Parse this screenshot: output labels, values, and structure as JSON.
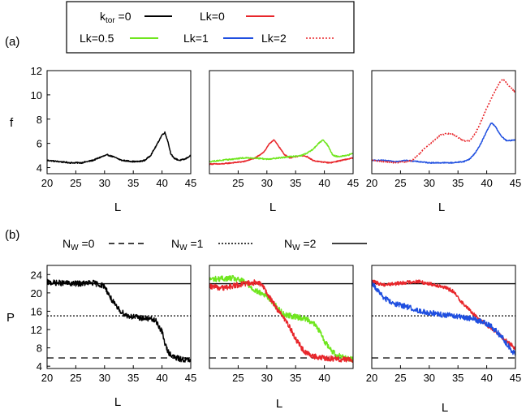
{
  "legend_top": {
    "entries": [
      {
        "label_main": "k",
        "label_sub": "tor",
        "label_rest": " =0",
        "color": "#000000",
        "dash": "solid"
      },
      {
        "label_main": "Lk=0",
        "color": "#e8262b",
        "dash": "solid"
      },
      {
        "label_main": "Lk=0.5",
        "color": "#6fe61e",
        "dash": "solid"
      },
      {
        "label_main": "Lk=1",
        "color": "#1f4fe0",
        "dash": "solid"
      },
      {
        "label_main": "Lk=2",
        "color": "#e8262b",
        "dash": "dotted"
      }
    ]
  },
  "panel_labels": {
    "a": "(a)",
    "b": "(b)"
  },
  "legend_b": {
    "entries": [
      {
        "label_main": "N",
        "label_sub": "W",
        "label_rest": " =0",
        "dash": "dashed"
      },
      {
        "label_main": "N",
        "label_sub": "W",
        "label_rest": " =1",
        "dash": "dotted"
      },
      {
        "label_main": "N",
        "label_sub": "W",
        "label_rest": " =2",
        "dash": "solid"
      }
    ]
  },
  "chart_data": [
    {
      "id": "a1",
      "type": "line",
      "xlabel": "L",
      "ylabel": "f",
      "xlim": [
        20,
        45
      ],
      "ylim": [
        3.5,
        12
      ],
      "xticks": [
        20,
        25,
        30,
        35,
        40,
        45
      ],
      "yticks": [
        4,
        6,
        8,
        10,
        12
      ],
      "series": [
        {
          "name": "ktor=0",
          "color": "#000000",
          "dash": "solid",
          "noise": 0.05,
          "points": [
            [
              20,
              4.6
            ],
            [
              22,
              4.5
            ],
            [
              24,
              4.4
            ],
            [
              26,
              4.4
            ],
            [
              28,
              4.6
            ],
            [
              29.5,
              4.9
            ],
            [
              30.5,
              5.05
            ],
            [
              31.5,
              4.9
            ],
            [
              33,
              4.6
            ],
            [
              35,
              4.5
            ],
            [
              36,
              4.5
            ],
            [
              37,
              4.6
            ],
            [
              38,
              5.0
            ],
            [
              39,
              5.8
            ],
            [
              40,
              6.7
            ],
            [
              40.5,
              6.9
            ],
            [
              41,
              6.2
            ],
            [
              41.5,
              5.2
            ],
            [
              42,
              4.8
            ],
            [
              43,
              4.6
            ],
            [
              44,
              4.7
            ],
            [
              45,
              5.0
            ]
          ]
        }
      ]
    },
    {
      "id": "a2",
      "type": "line",
      "xlabel": "L",
      "ylabel": "",
      "xlim": [
        20,
        45
      ],
      "ylim": [
        3.5,
        12
      ],
      "xticks": [
        25,
        30,
        35,
        40,
        45
      ],
      "yticks": [],
      "series": [
        {
          "name": "Lk=0",
          "color": "#e8262b",
          "dash": "solid",
          "noise": 0.04,
          "points": [
            [
              20,
              4.3
            ],
            [
              22,
              4.3
            ],
            [
              24,
              4.4
            ],
            [
              26,
              4.5
            ],
            [
              28,
              4.8
            ],
            [
              29.5,
              5.3
            ],
            [
              30.5,
              6.0
            ],
            [
              31.2,
              6.3
            ],
            [
              32,
              5.8
            ],
            [
              33,
              5.1
            ],
            [
              34,
              4.8
            ],
            [
              35,
              4.9
            ],
            [
              36,
              5.0
            ],
            [
              37,
              4.9
            ],
            [
              38,
              4.6
            ],
            [
              39,
              4.5
            ],
            [
              41,
              4.4
            ],
            [
              43,
              4.6
            ],
            [
              45,
              4.8
            ]
          ]
        },
        {
          "name": "Lk=0.5",
          "color": "#6fe61e",
          "dash": "solid",
          "noise": 0.05,
          "points": [
            [
              20,
              4.5
            ],
            [
              22,
              4.6
            ],
            [
              24,
              4.7
            ],
            [
              26,
              4.8
            ],
            [
              28,
              4.8
            ],
            [
              30,
              4.7
            ],
            [
              32,
              4.8
            ],
            [
              34,
              4.9
            ],
            [
              36,
              5.0
            ],
            [
              37,
              5.2
            ],
            [
              38,
              5.5
            ],
            [
              39,
              6.0
            ],
            [
              39.8,
              6.3
            ],
            [
              40.5,
              5.9
            ],
            [
              41.5,
              5.0
            ],
            [
              42.5,
              4.9
            ],
            [
              44,
              5.0
            ],
            [
              45,
              5.2
            ]
          ]
        }
      ]
    },
    {
      "id": "a3",
      "type": "line",
      "xlabel": "L",
      "ylabel": "",
      "xlim": [
        20,
        45
      ],
      "ylim": [
        3.5,
        12
      ],
      "xticks": [
        20,
        25,
        30,
        35,
        40,
        45
      ],
      "yticks": [],
      "series": [
        {
          "name": "Lk=1",
          "color": "#1f4fe0",
          "dash": "solid",
          "noise": 0.04,
          "points": [
            [
              20,
              4.6
            ],
            [
              22,
              4.6
            ],
            [
              24,
              4.5
            ],
            [
              26,
              4.6
            ],
            [
              28,
              4.5
            ],
            [
              30,
              4.4
            ],
            [
              32,
              4.4
            ],
            [
              34,
              4.4
            ],
            [
              36,
              4.5
            ],
            [
              37,
              4.7
            ],
            [
              38,
              5.2
            ],
            [
              39,
              6.0
            ],
            [
              40,
              7.0
            ],
            [
              40.8,
              7.7
            ],
            [
              41.5,
              7.4
            ],
            [
              42.5,
              6.6
            ],
            [
              43.5,
              6.2
            ],
            [
              45,
              6.3
            ]
          ]
        },
        {
          "name": "Lk=2",
          "color": "#e8262b",
          "dash": "dotted",
          "noise": 0.04,
          "points": [
            [
              20,
              4.6
            ],
            [
              22,
              4.5
            ],
            [
              24,
              4.4
            ],
            [
              26,
              4.5
            ],
            [
              27,
              4.6
            ],
            [
              28,
              5.0
            ],
            [
              29,
              5.5
            ],
            [
              30,
              5.9
            ],
            [
              31,
              6.3
            ],
            [
              32,
              6.7
            ],
            [
              33,
              6.8
            ],
            [
              34,
              6.8
            ],
            [
              35,
              6.5
            ],
            [
              36,
              6.2
            ],
            [
              37,
              6.2
            ],
            [
              38,
              6.8
            ],
            [
              39,
              7.8
            ],
            [
              40,
              8.9
            ],
            [
              41,
              9.9
            ],
            [
              42,
              10.8
            ],
            [
              42.5,
              11.2
            ],
            [
              43,
              11.2
            ],
            [
              44,
              10.7
            ],
            [
              45,
              10.2
            ]
          ]
        }
      ]
    },
    {
      "id": "b1",
      "type": "line",
      "xlabel": "L",
      "ylabel": "P",
      "xlim": [
        20,
        45
      ],
      "ylim": [
        3.5,
        26
      ],
      "xticks": [
        20,
        25,
        30,
        35,
        40,
        45
      ],
      "yticks": [
        4,
        8,
        12,
        16,
        20,
        24
      ],
      "hlines": [
        {
          "y": 22,
          "dash": "solid"
        },
        {
          "y": 15,
          "dash": "dotted"
        },
        {
          "y": 5.8,
          "dash": "dashed"
        }
      ],
      "series": [
        {
          "name": "ktor=0",
          "color": "#000000",
          "dash": "solid",
          "noise": 0.6,
          "points": [
            [
              20,
              22.3
            ],
            [
              25,
              22.0
            ],
            [
              28,
              22.2
            ],
            [
              30,
              21.5
            ],
            [
              31,
              19.0
            ],
            [
              32,
              17.0
            ],
            [
              33,
              15.8
            ],
            [
              34,
              15.0
            ],
            [
              36,
              14.6
            ],
            [
              38,
              14.3
            ],
            [
              39,
              13.8
            ],
            [
              40,
              11.5
            ],
            [
              40.5,
              9.0
            ],
            [
              41,
              7.2
            ],
            [
              42,
              6.0
            ],
            [
              43,
              5.6
            ],
            [
              45,
              5.2
            ]
          ]
        }
      ]
    },
    {
      "id": "b2",
      "type": "line",
      "xlabel": "L",
      "ylabel": "",
      "xlim": [
        20,
        45
      ],
      "ylim": [
        3.5,
        26
      ],
      "xticks": [
        25,
        30,
        35,
        40
      ],
      "yticks": [],
      "hlines": [
        {
          "y": 22,
          "dash": "solid"
        },
        {
          "y": 15,
          "dash": "dotted"
        },
        {
          "y": 5.8,
          "dash": "dashed"
        }
      ],
      "series": [
        {
          "name": "Lk=0.5",
          "color": "#6fe61e",
          "dash": "solid",
          "noise": 0.6,
          "points": [
            [
              20,
              23.0
            ],
            [
              24,
              23.2
            ],
            [
              26,
              22.5
            ],
            [
              27,
              21.5
            ],
            [
              28,
              20.5
            ],
            [
              30,
              19.3
            ],
            [
              31,
              18.0
            ],
            [
              32,
              16.5
            ],
            [
              33,
              15.3
            ],
            [
              35,
              14.8
            ],
            [
              37,
              14.3
            ],
            [
              38,
              13.5
            ],
            [
              39,
              12.0
            ],
            [
              40,
              9.5
            ],
            [
              41,
              7.8
            ],
            [
              42,
              6.5
            ],
            [
              44,
              5.8
            ],
            [
              45,
              5.4
            ]
          ]
        },
        {
          "name": "Lk=0",
          "color": "#e8262b",
          "dash": "solid",
          "noise": 0.6,
          "points": [
            [
              20,
              21.5
            ],
            [
              22,
              21.0
            ],
            [
              24,
              21.5
            ],
            [
              26,
              22.0
            ],
            [
              28,
              22.3
            ],
            [
              29,
              21.8
            ],
            [
              30,
              20.0
            ],
            [
              31,
              18.0
            ],
            [
              32,
              16.0
            ],
            [
              33,
              14.5
            ],
            [
              34,
              12.5
            ],
            [
              35,
              10.0
            ],
            [
              36,
              8.0
            ],
            [
              37,
              6.8
            ],
            [
              38,
              6.2
            ],
            [
              40,
              5.8
            ],
            [
              42,
              5.6
            ],
            [
              45,
              5.3
            ]
          ]
        }
      ]
    },
    {
      "id": "b3",
      "type": "line",
      "xlabel": "L",
      "ylabel": "",
      "xlim": [
        20,
        45
      ],
      "ylim": [
        3.5,
        26
      ],
      "xticks": [
        20,
        25,
        30,
        35,
        40,
        45
      ],
      "yticks": [],
      "hlines": [
        {
          "y": 22,
          "dash": "solid"
        },
        {
          "y": 15,
          "dash": "dotted"
        },
        {
          "y": 5.8,
          "dash": "dashed"
        }
      ],
      "series": [
        {
          "name": "Lk=2",
          "color": "#e8262b",
          "dash": "solid",
          "noise": 0.4,
          "points": [
            [
              20,
              22.5
            ],
            [
              22,
              21.8
            ],
            [
              24,
              22.0
            ],
            [
              26,
              22.3
            ],
            [
              28,
              22.5
            ],
            [
              30,
              22.0
            ],
            [
              32,
              21.5
            ],
            [
              34,
              20.5
            ],
            [
              35,
              19.0
            ],
            [
              36,
              17.5
            ],
            [
              37,
              16.3
            ],
            [
              38,
              15.0
            ],
            [
              39,
              14.0
            ],
            [
              40,
              13.0
            ],
            [
              41,
              12.0
            ],
            [
              42,
              11.0
            ],
            [
              43,
              10.0
            ],
            [
              44,
              9.0
            ],
            [
              45,
              7.8
            ]
          ]
        },
        {
          "name": "Lk=1",
          "color": "#1f4fe0",
          "dash": "solid",
          "noise": 0.6,
          "points": [
            [
              20,
              22.3
            ],
            [
              21,
              20.5
            ],
            [
              22,
              19.0
            ],
            [
              23,
              18.2
            ],
            [
              24,
              17.7
            ],
            [
              26,
              17.0
            ],
            [
              28,
              16.2
            ],
            [
              30,
              15.7
            ],
            [
              32,
              15.3
            ],
            [
              34,
              15.0
            ],
            [
              36,
              14.7
            ],
            [
              38,
              14.2
            ],
            [
              40,
              13.3
            ],
            [
              41,
              12.5
            ],
            [
              42,
              11.2
            ],
            [
              43,
              9.8
            ],
            [
              44,
              8.0
            ],
            [
              45,
              6.4
            ]
          ]
        }
      ]
    }
  ]
}
